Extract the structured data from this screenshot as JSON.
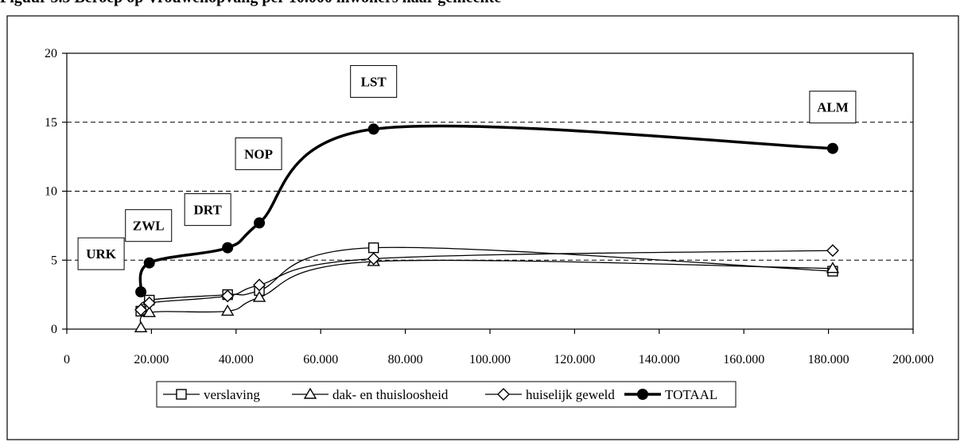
{
  "heading": "Figuur 3.3 Beroep op Vrouwenopvang per 10.000 inwoners naar gemeente",
  "chart_data": {
    "type": "line",
    "xlim": [
      0,
      200000
    ],
    "ylim": [
      0,
      20
    ],
    "xticks": [
      0,
      20000,
      40000,
      60000,
      80000,
      100000,
      120000,
      140000,
      160000,
      180000,
      200000
    ],
    "xtick_labels": [
      "0",
      "20.000",
      "40.000",
      "60.000",
      "80.000",
      "100.000",
      "120.000",
      "140.000",
      "160.000",
      "180.000",
      "200.000"
    ],
    "yticks": [
      0,
      5,
      10,
      15,
      20
    ],
    "ytick_labels": [
      "0",
      "5",
      "10",
      "15",
      "20"
    ],
    "grid": "horizontal dashed",
    "legend_position": "bottom",
    "x": [
      17500,
      19500,
      38000,
      45500,
      72500,
      181000
    ],
    "point_labels": [
      "URK",
      "ZWL",
      "DRT",
      "NOP",
      "LST",
      "ALM"
    ],
    "series": [
      {
        "name": "verslaving",
        "marker": "square",
        "values": [
          1.3,
          2.1,
          2.5,
          2.8,
          5.9,
          4.2
        ]
      },
      {
        "name": "dak- en thuisloosheid",
        "marker": "triangle",
        "values": [
          0.1,
          1.2,
          1.3,
          2.3,
          4.9,
          4.4
        ]
      },
      {
        "name": "huiselijk geweld",
        "marker": "diamond",
        "values": [
          1.4,
          1.9,
          2.4,
          3.2,
          5.1,
          5.7
        ]
      },
      {
        "name": "TOTAAL",
        "marker": "circle",
        "values": [
          2.7,
          4.8,
          5.9,
          7.7,
          14.5,
          13.1
        ]
      }
    ]
  }
}
